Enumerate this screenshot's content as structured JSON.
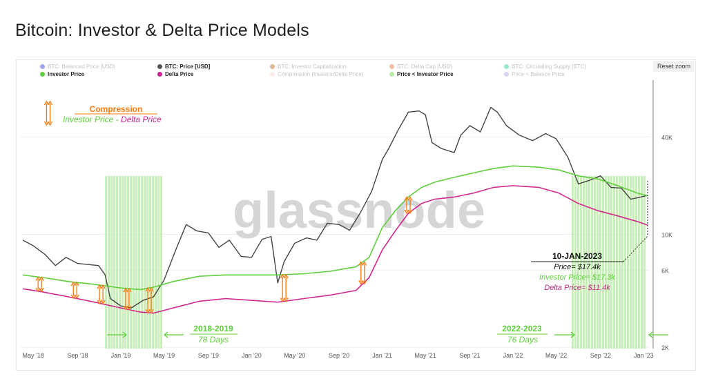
{
  "page_title": "Bitcoin: Investor & Delta Price Models",
  "reset_zoom_label": "Reset zoom",
  "watermark": "glassnode",
  "legend": [
    {
      "label": "BTC: Balanced Price [USD]",
      "color": "#3b4fd6",
      "active": false
    },
    {
      "label": "BTC: Price [USD]",
      "color": "#555555",
      "active": true
    },
    {
      "label": "BTC: Investor Capitalization",
      "color": "#b8722b",
      "active": false
    },
    {
      "label": "BTC: Delta Cap [USD]",
      "color": "#e0804a",
      "active": false
    },
    {
      "label": "BTC: Circulating Supply [BTC]",
      "color": "#2fd3a3",
      "active": false
    },
    {
      "label": "Investor Price",
      "color": "#5fcf3c",
      "active": true
    },
    {
      "label": "Delta Price",
      "color": "#d0268f",
      "active": true
    },
    {
      "label": "Compression (Investor/Delta Price)",
      "color": "#f6d9c9",
      "active": false
    },
    {
      "label": "Price < Investor Price",
      "color": "#b9eaa4",
      "active": true
    },
    {
      "label": "Price < Balance Price",
      "color": "#b7a7e8",
      "active": false
    }
  ],
  "annotations": {
    "compression_title": "Compression",
    "compression_investor": "Investor Price",
    "compression_dash": " - ",
    "compression_delta": "Delta Price",
    "period1_title": "2018-2019",
    "period1_days": "78 Days",
    "period2_title": "2022-2023",
    "period2_days": "76 Days",
    "callout_date": "10-JAN-2023",
    "callout_price": "Price= $17.4k",
    "callout_investor": "Investor Price= $17.3k",
    "callout_delta": "Delta Price= $11.4k"
  },
  "chart_data": {
    "type": "line",
    "y_scale": "log",
    "x_ticks": [
      "May '18",
      "Sep '18",
      "Jan '19",
      "May '19",
      "Sep '19",
      "Jan '20",
      "May '20",
      "Sep '20",
      "Jan '21",
      "May '21",
      "Sep '21",
      "Jan '22",
      "May '22",
      "Sep '22",
      "Jan '23"
    ],
    "y_ticks": [
      {
        "label": "2K",
        "value": 2000
      },
      {
        "label": "6K",
        "value": 6000
      },
      {
        "label": "10K",
        "value": 10000
      },
      {
        "label": "40K",
        "value": 40000
      }
    ],
    "series": [
      {
        "name": "BTC: Price [USD]",
        "color": "#444444",
        "x": [
          2018.25,
          2018.33,
          2018.42,
          2018.5,
          2018.58,
          2018.67,
          2018.75,
          2018.83,
          2018.88,
          2018.92,
          2019.0,
          2019.08,
          2019.17,
          2019.25,
          2019.33,
          2019.42,
          2019.5,
          2019.58,
          2019.67,
          2019.75,
          2019.83,
          2019.92,
          2020.0,
          2020.08,
          2020.15,
          2020.2,
          2020.25,
          2020.33,
          2020.42,
          2020.5,
          2020.58,
          2020.67,
          2020.75,
          2020.83,
          2020.92,
          2021.0,
          2021.05,
          2021.12,
          2021.2,
          2021.28,
          2021.33,
          2021.38,
          2021.45,
          2021.55,
          2021.6,
          2021.67,
          2021.75,
          2021.83,
          2021.88,
          2021.95,
          2022.05,
          2022.15,
          2022.25,
          2022.33,
          2022.42,
          2022.5,
          2022.58,
          2022.67,
          2022.75,
          2022.83,
          2022.9,
          2022.95,
          2023.03
        ],
        "y": [
          9200,
          8500,
          7500,
          6400,
          7200,
          6600,
          6500,
          6400,
          5600,
          4000,
          3600,
          3500,
          3900,
          4100,
          5200,
          8000,
          11500,
          10500,
          10200,
          8300,
          9200,
          7300,
          7200,
          9300,
          9700,
          5000,
          6800,
          8800,
          9500,
          9200,
          11700,
          11500,
          10600,
          13500,
          18500,
          29000,
          34000,
          44000,
          57000,
          58000,
          55000,
          37000,
          34000,
          32000,
          41000,
          47000,
          43000,
          61000,
          57000,
          47000,
          41000,
          38000,
          42000,
          39000,
          30000,
          20500,
          21500,
          23000,
          19500,
          19300,
          16500,
          16800,
          17400
        ]
      },
      {
        "name": "Investor Price",
        "color": "#5fcf3c",
        "x": [
          2018.25,
          2018.4,
          2018.6,
          2018.8,
          2019.0,
          2019.15,
          2019.25,
          2019.4,
          2019.6,
          2019.8,
          2020.0,
          2020.2,
          2020.4,
          2020.6,
          2020.8,
          2020.9,
          2021.0,
          2021.1,
          2021.2,
          2021.3,
          2021.4,
          2021.55,
          2021.7,
          2021.85,
          2022.0,
          2022.2,
          2022.35,
          2022.5,
          2022.65,
          2022.8,
          2022.95,
          2023.03
        ],
        "y": [
          5600,
          5400,
          5100,
          4900,
          4650,
          4550,
          4700,
          5100,
          5500,
          5600,
          5600,
          5600,
          5700,
          5900,
          6300,
          7200,
          11000,
          14000,
          17000,
          19500,
          21000,
          22500,
          24000,
          25500,
          26500,
          26000,
          25000,
          23000,
          22000,
          20000,
          18000,
          17300
        ]
      },
      {
        "name": "Delta Price",
        "color": "#d0268f",
        "x": [
          2018.25,
          2018.4,
          2018.6,
          2018.8,
          2019.0,
          2019.15,
          2019.25,
          2019.4,
          2019.6,
          2019.8,
          2020.0,
          2020.2,
          2020.4,
          2020.6,
          2020.8,
          2020.9,
          2021.0,
          2021.1,
          2021.2,
          2021.3,
          2021.4,
          2021.55,
          2021.7,
          2021.85,
          2022.0,
          2022.2,
          2022.35,
          2022.5,
          2022.65,
          2022.8,
          2022.95,
          2023.03
        ],
        "y": [
          4600,
          4400,
          4100,
          3800,
          3500,
          3300,
          3250,
          3500,
          3850,
          4000,
          3900,
          3800,
          4000,
          4200,
          4500,
          5400,
          8000,
          10500,
          13500,
          15500,
          16500,
          17000,
          18000,
          19500,
          20000,
          19500,
          18000,
          15500,
          14000,
          13000,
          12000,
          11400
        ]
      }
    ],
    "shaded_periods": [
      {
        "label": "Price < Investor Price",
        "start": 2018.88,
        "end": 2019.32
      },
      {
        "label": "Price < Investor Price",
        "start": 2022.45,
        "end": 2023.02
      }
    ]
  }
}
